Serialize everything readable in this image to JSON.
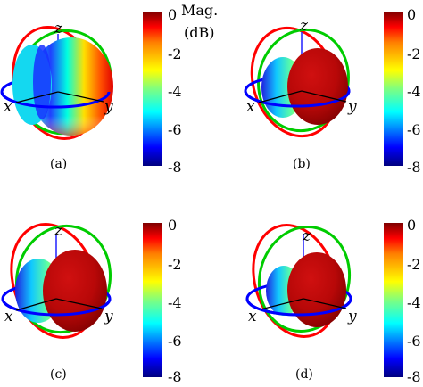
{
  "colorbar": {
    "title_line1": "Mag.",
    "title_line2": "(dB)",
    "ticks": [
      "0",
      "-2",
      "-4",
      "-6",
      "-8"
    ],
    "colors": [
      "#00007f",
      "#0000ff",
      "#007fff",
      "#00ffff",
      "#7fff7f",
      "#ffff00",
      "#ff7f00",
      "#ff0000",
      "#7f0000"
    ]
  },
  "axis_labels": {
    "x": "x",
    "y": "y",
    "z": "z"
  },
  "ring_colors": {
    "horizontal": "#0000ff",
    "green": "#00cc00",
    "red": "#ff0000"
  },
  "panels": [
    {
      "caption": "(a)"
    },
    {
      "caption": "(b)"
    },
    {
      "caption": "(c)"
    },
    {
      "caption": "(d)"
    }
  ]
}
